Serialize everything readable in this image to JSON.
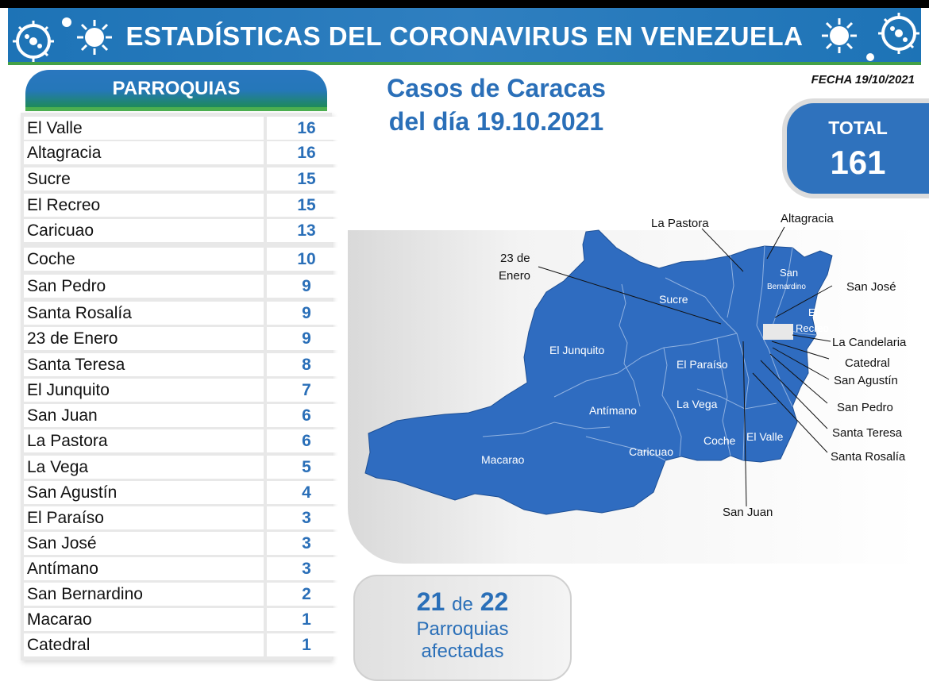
{
  "header": {
    "title": "ESTADÍSTICAS DEL CORONAVIRUS EN VENEZUELA"
  },
  "panel": {
    "title": "PARROQUIAS"
  },
  "parroquias": [
    {
      "name": "El Valle",
      "value": "16"
    },
    {
      "name": "Altagracia",
      "value": "16"
    },
    {
      "name": "Sucre",
      "value": "15"
    },
    {
      "name": "El Recreo",
      "value": "15"
    },
    {
      "name": "Caricuao",
      "value": "13"
    },
    {
      "name": "Coche",
      "value": "10"
    },
    {
      "name": "San Pedro",
      "value": "9"
    },
    {
      "name": "Santa Rosalía",
      "value": "9"
    },
    {
      "name": "23 de Enero",
      "value": "9"
    },
    {
      "name": "Santa Teresa",
      "value": "8"
    },
    {
      "name": "El Junquito",
      "value": "7"
    },
    {
      "name": "San Juan",
      "value": "6"
    },
    {
      "name": "La Pastora",
      "value": "6"
    },
    {
      "name": "La Vega",
      "value": "5"
    },
    {
      "name": "San Agustín",
      "value": "4"
    },
    {
      "name": "El Paraíso",
      "value": "3"
    },
    {
      "name": "San José",
      "value": "3"
    },
    {
      "name": "Antímano",
      "value": "3"
    },
    {
      "name": "San Bernardino",
      "value": "2"
    },
    {
      "name": "Macarao",
      "value": "1"
    },
    {
      "name": "Catedral",
      "value": "1"
    }
  ],
  "main": {
    "title_line1": "Casos de Caracas",
    "title_line2": "del día 19.10.2021",
    "fecha": "FECHA 19/10/2021"
  },
  "total": {
    "label": "TOTAL",
    "value": "161"
  },
  "map": {
    "fill_color": "#2f6cc0",
    "labels_outside": {
      "la_pastora": "La Pastora",
      "altagracia": "Altagracia",
      "enero_1": "23 de",
      "enero_2": "Enero",
      "san_jose": "San José",
      "la_candelaria": "La Candelaria",
      "catedral": "Catedral",
      "san_agustin": "San Agustín",
      "san_pedro": "San Pedro",
      "santa_teresa": "Santa Teresa",
      "santa_rosalia": "Santa Rosalía",
      "san_juan": "San Juan"
    },
    "labels_inside": {
      "sucre": "Sucre",
      "el_junquito": "El Junquito",
      "el_paraiso": "El Paraíso",
      "antimano": "Antímano",
      "la_vega": "La Vega",
      "macarao": "Macarao",
      "caricuao": "Caricuao",
      "coche": "Coche",
      "el_valle": "El Valle",
      "san_bernardino_1": "San",
      "san_bernardino_2": "Bernardino",
      "el_recreo_1": "El",
      "el_recreo_2": "Recreo"
    }
  },
  "affected": {
    "count": "21",
    "of": "de",
    "total": "22",
    "line2": "Parroquias",
    "line3": "afectadas"
  },
  "colors": {
    "header_blue": "#1d73b6",
    "accent_green": "#43a047",
    "number_blue": "#2a6fb8",
    "map_blue": "#2f6cc0"
  }
}
